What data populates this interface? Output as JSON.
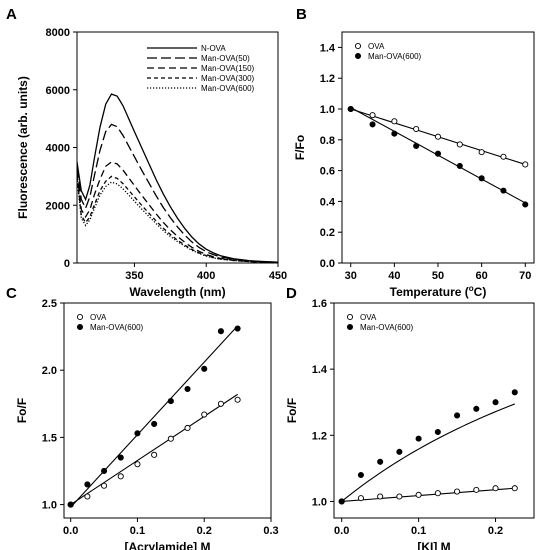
{
  "chart_data": [
    {
      "panel": "A",
      "type": "line",
      "title": "",
      "xlabel": "Wavelength (nm)",
      "ylabel": "Fluorescence (arb. units)",
      "xlim": [
        310,
        450
      ],
      "ylim": [
        0,
        8000
      ],
      "xticks": [
        "350",
        "400",
        "450"
      ],
      "yticks": [
        "0",
        "2000",
        "4000",
        "6000",
        "8000"
      ],
      "legend_position": "top-right",
      "series": [
        {
          "name": "N-OVA",
          "dash": "solid",
          "x": [
            310,
            313,
            316,
            319,
            322,
            326,
            330,
            334,
            338,
            342,
            346,
            350,
            355,
            360,
            365,
            370,
            375,
            380,
            385,
            390,
            395,
            400,
            405,
            410,
            420,
            430,
            440,
            450
          ],
          "y": [
            3500,
            2500,
            2200,
            2700,
            3600,
            4700,
            5500,
            5850,
            5780,
            5450,
            5000,
            4550,
            4000,
            3450,
            2900,
            2400,
            1950,
            1550,
            1200,
            900,
            660,
            480,
            350,
            250,
            140,
            80,
            50,
            30
          ]
        },
        {
          "name": "Man-OVA(50)",
          "dash": "long",
          "x": [
            310,
            313,
            316,
            319,
            322,
            326,
            330,
            334,
            338,
            342,
            346,
            350,
            355,
            360,
            365,
            370,
            375,
            380,
            385,
            390,
            395,
            400,
            405,
            410,
            420,
            430,
            440,
            450
          ],
          "y": [
            3300,
            2200,
            1900,
            2300,
            3000,
            3900,
            4550,
            4800,
            4720,
            4420,
            4050,
            3680,
            3220,
            2780,
            2340,
            1930,
            1570,
            1250,
            970,
            730,
            540,
            390,
            290,
            210,
            120,
            70,
            40,
            25
          ]
        },
        {
          "name": "Man-OVA(150)",
          "dash": "medium",
          "x": [
            310,
            313,
            316,
            319,
            322,
            326,
            330,
            334,
            338,
            342,
            346,
            350,
            355,
            360,
            365,
            370,
            375,
            380,
            385,
            390,
            395,
            400,
            405,
            410,
            420,
            430,
            440,
            450
          ],
          "y": [
            3100,
            1850,
            1600,
            1850,
            2350,
            2900,
            3350,
            3500,
            3430,
            3220,
            2950,
            2680,
            2350,
            2030,
            1710,
            1410,
            1150,
            920,
            720,
            545,
            405,
            295,
            215,
            160,
            95,
            55,
            35,
            20
          ]
        },
        {
          "name": "Man-OVA(300)",
          "dash": "short",
          "x": [
            310,
            313,
            316,
            319,
            322,
            326,
            330,
            334,
            338,
            342,
            346,
            350,
            355,
            360,
            365,
            370,
            375,
            380,
            385,
            390,
            395,
            400,
            405,
            410,
            420,
            430,
            440,
            450
          ],
          "y": [
            3000,
            1650,
            1400,
            1600,
            2000,
            2500,
            2830,
            3000,
            2930,
            2750,
            2520,
            2290,
            2000,
            1730,
            1460,
            1210,
            990,
            790,
            620,
            470,
            350,
            255,
            190,
            140,
            85,
            50,
            30,
            18
          ]
        },
        {
          "name": "Man-OVA(600)",
          "dash": "dotted",
          "x": [
            310,
            313,
            316,
            319,
            322,
            326,
            330,
            334,
            338,
            342,
            346,
            350,
            355,
            360,
            365,
            370,
            375,
            380,
            385,
            390,
            395,
            400,
            405,
            410,
            420,
            430,
            440,
            450
          ],
          "y": [
            2950,
            1550,
            1300,
            1500,
            1880,
            2350,
            2650,
            2800,
            2740,
            2570,
            2360,
            2140,
            1870,
            1620,
            1370,
            1130,
            920,
            740,
            580,
            440,
            330,
            240,
            178,
            130,
            80,
            48,
            28,
            17
          ]
        }
      ]
    },
    {
      "panel": "B",
      "type": "scatter",
      "title": "",
      "xlabel": "Temperature (",
      "xlabel_super": "o",
      "xlabel_end": "C)",
      "ylabel": "F/Fo",
      "xlim": [
        28,
        72
      ],
      "ylim": [
        0.0,
        1.5
      ],
      "xticks": [
        "30",
        "40",
        "50",
        "60",
        "70"
      ],
      "yticks": [
        "0.0",
        "0.2",
        "0.4",
        "0.6",
        "0.8",
        "1.0",
        "1.2",
        "1.4"
      ],
      "legend_position": "top-left",
      "series": [
        {
          "name": "OVA",
          "marker": "open",
          "x": [
            30,
            35,
            40,
            45,
            50,
            55,
            60,
            65,
            70
          ],
          "y": [
            1.0,
            0.96,
            0.92,
            0.87,
            0.82,
            0.77,
            0.72,
            0.69,
            0.64
          ],
          "fit": [
            [
              30,
              1.0
            ],
            [
              70,
              0.64
            ]
          ]
        },
        {
          "name": "Man-OVA(600)",
          "marker": "filled",
          "x": [
            30,
            35,
            40,
            45,
            50,
            55,
            60,
            65,
            70
          ],
          "y": [
            1.0,
            0.9,
            0.84,
            0.76,
            0.71,
            0.63,
            0.55,
            0.47,
            0.38
          ],
          "fit": [
            [
              30,
              1.01
            ],
            [
              70,
              0.39
            ]
          ]
        }
      ]
    },
    {
      "panel": "C",
      "type": "scatter",
      "title": "",
      "xlabel": "[Acrylamide] M",
      "ylabel": "Fo/F",
      "xlim": [
        -0.01,
        0.3
      ],
      "ylim": [
        0.9,
        2.5
      ],
      "xticks": [
        "0.0",
        "0.1",
        "0.2",
        "0.3"
      ],
      "yticks": [
        "1.0",
        "1.5",
        "2.0",
        "2.5"
      ],
      "legend_position": "top-left",
      "series": [
        {
          "name": "OVA",
          "marker": "open",
          "x": [
            0,
            0.025,
            0.05,
            0.075,
            0.1,
            0.125,
            0.15,
            0.175,
            0.2,
            0.225,
            0.25
          ],
          "y": [
            1.0,
            1.06,
            1.14,
            1.21,
            1.3,
            1.37,
            1.49,
            1.57,
            1.67,
            1.75,
            1.78
          ],
          "fit": [
            [
              0,
              1.0
            ],
            [
              0.25,
              1.82
            ]
          ]
        },
        {
          "name": "Man-OVA(600)",
          "marker": "filled",
          "x": [
            0,
            0.025,
            0.05,
            0.075,
            0.1,
            0.125,
            0.15,
            0.175,
            0.2,
            0.225,
            0.25
          ],
          "y": [
            1.0,
            1.15,
            1.25,
            1.35,
            1.53,
            1.6,
            1.77,
            1.86,
            2.01,
            2.29,
            2.31
          ],
          "fit": [
            [
              0,
              0.98
            ],
            [
              0.25,
              2.33
            ]
          ]
        }
      ]
    },
    {
      "panel": "D",
      "type": "scatter",
      "title": "",
      "xlabel": "[KI] M",
      "ylabel": "Fo/F",
      "xlim": [
        -0.01,
        0.25
      ],
      "ylim": [
        0.95,
        1.6
      ],
      "xticks": [
        "0.0",
        "0.1",
        "0.2"
      ],
      "yticks": [
        "1.0",
        "1.2",
        "1.4",
        "1.6"
      ],
      "legend_position": "top-left",
      "series": [
        {
          "name": "OVA",
          "marker": "open",
          "x": [
            0,
            0.025,
            0.05,
            0.075,
            0.1,
            0.125,
            0.15,
            0.175,
            0.2,
            0.225
          ],
          "y": [
            1.0,
            1.01,
            1.015,
            1.015,
            1.02,
            1.025,
            1.03,
            1.035,
            1.04,
            1.04
          ],
          "fit": [
            [
              0,
              1.0
            ],
            [
              0.225,
              1.04
            ]
          ]
        },
        {
          "name": "Man-OVA(600)",
          "marker": "filled",
          "x": [
            0,
            0.025,
            0.05,
            0.075,
            0.1,
            0.125,
            0.15,
            0.175,
            0.2,
            0.225
          ],
          "y": [
            1.0,
            1.08,
            1.12,
            1.15,
            1.19,
            1.21,
            1.26,
            1.28,
            1.3,
            1.33
          ],
          "fit_curve": {
            "a": 1.0,
            "b": 1.9,
            "c": 2.0
          }
        }
      ]
    }
  ]
}
